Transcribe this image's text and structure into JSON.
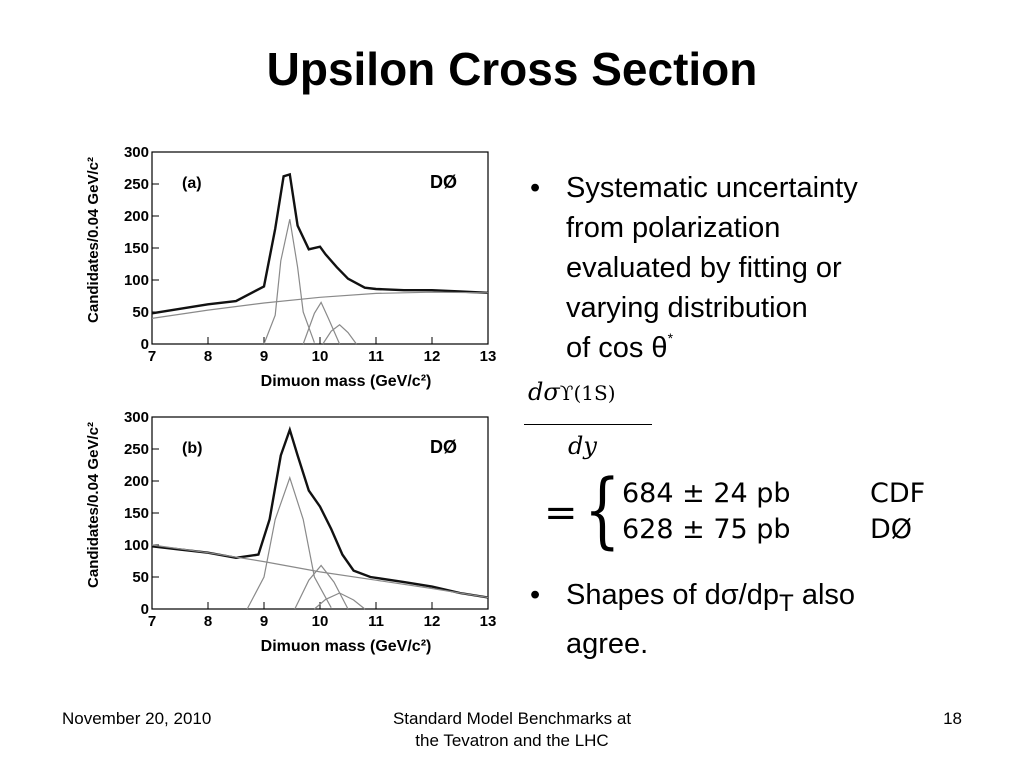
{
  "slide": {
    "title": "Upsilon Cross Section",
    "bullets": [
      {
        "lines": [
          "Systematic uncertainty",
          "from polarization",
          "evaluated by fitting or",
          "varying distribution"
        ],
        "last_prefix": "of cos θ",
        "sup": "*"
      },
      {
        "prefix": "Shapes of dσ/dp",
        "sub": "T",
        "suffix": " also",
        "line2": "agree."
      }
    ],
    "bullet_symbol": "•",
    "formula": {
      "numerator_d": "dσ",
      "numerator_sub": "ϒ(1S)",
      "denominator": "dy",
      "equals": "=",
      "brace": "{",
      "rows": [
        {
          "value": "684 ± 24 pb",
          "experiment": "CDF"
        },
        {
          "value": "628 ± 75 pb",
          "experiment": "DØ"
        }
      ]
    },
    "footer": {
      "date": "November 20, 2010",
      "center_line1": "Standard Model Benchmarks at",
      "center_line2": "the Tevatron and the LHC",
      "page": "18"
    }
  },
  "chart_data": [
    {
      "type": "line",
      "panel_label": "(a)",
      "experiment_label": "DØ",
      "xlabel": "Dimuon mass (GeV/c²)",
      "ylabel": "Candidates/0.04 GeV/c²",
      "xlim": [
        7,
        13
      ],
      "ylim": [
        0,
        300
      ],
      "xticks": [
        7,
        8,
        9,
        10,
        11,
        12,
        13
      ],
      "yticks": [
        0,
        50,
        100,
        150,
        200,
        250,
        300
      ],
      "series": [
        {
          "x": [
            7.0,
            7.5,
            8.0,
            8.5,
            9.0,
            9.2,
            9.35,
            9.46,
            9.6,
            9.8,
            10.0,
            10.1,
            10.3,
            10.5,
            10.8,
            11.0,
            11.5,
            12.0,
            12.5,
            13.0
          ],
          "values": [
            48,
            55,
            62,
            67,
            90,
            180,
            262,
            265,
            185,
            148,
            152,
            140,
            120,
            102,
            88,
            86,
            84,
            84,
            82,
            80
          ]
        },
        {
          "x": [
            7.0,
            8.0,
            9.0,
            10.0,
            11.0,
            12.0,
            13.0
          ],
          "values": [
            40,
            53,
            64,
            73,
            79,
            81,
            80
          ]
        },
        {
          "x": [
            9.0,
            9.2,
            9.3,
            9.46,
            9.6,
            9.7,
            9.9
          ],
          "values": [
            0,
            45,
            130,
            195,
            120,
            50,
            2
          ]
        },
        {
          "x": [
            9.7,
            9.9,
            10.02,
            10.15,
            10.35
          ],
          "values": [
            0,
            48,
            65,
            40,
            0
          ]
        },
        {
          "x": [
            10.05,
            10.2,
            10.35,
            10.5,
            10.65
          ],
          "values": [
            0,
            20,
            30,
            18,
            0
          ]
        }
      ]
    },
    {
      "type": "line",
      "panel_label": "(b)",
      "experiment_label": "DØ",
      "xlabel": "Dimuon mass (GeV/c²)",
      "ylabel": "Candidates/0.04 GeV/c²",
      "xlim": [
        7,
        13
      ],
      "ylim": [
        0,
        300
      ],
      "xticks": [
        7,
        8,
        9,
        10,
        11,
        12,
        13
      ],
      "yticks": [
        0,
        50,
        100,
        150,
        200,
        250,
        300
      ],
      "series": [
        {
          "x": [
            7.0,
            7.5,
            8.0,
            8.5,
            8.9,
            9.1,
            9.3,
            9.46,
            9.6,
            9.8,
            10.0,
            10.2,
            10.4,
            10.6,
            10.9,
            11.5,
            12.0,
            12.5,
            13.0
          ],
          "values": [
            98,
            93,
            88,
            80,
            85,
            140,
            240,
            280,
            240,
            185,
            160,
            125,
            85,
            60,
            50,
            42,
            35,
            25,
            18
          ]
        },
        {
          "x": [
            7.0,
            8.0,
            9.0,
            10.0,
            11.0,
            12.0,
            13.0
          ],
          "values": [
            100,
            88,
            74,
            58,
            45,
            32,
            18
          ]
        },
        {
          "x": [
            8.7,
            9.0,
            9.2,
            9.46,
            9.7,
            9.9,
            10.2
          ],
          "values": [
            0,
            50,
            140,
            205,
            140,
            50,
            2
          ]
        },
        {
          "x": [
            9.55,
            9.8,
            10.02,
            10.25,
            10.5
          ],
          "values": [
            0,
            45,
            68,
            42,
            0
          ]
        },
        {
          "x": [
            9.9,
            10.1,
            10.35,
            10.6,
            10.8
          ],
          "values": [
            0,
            15,
            25,
            14,
            0
          ]
        }
      ]
    }
  ]
}
